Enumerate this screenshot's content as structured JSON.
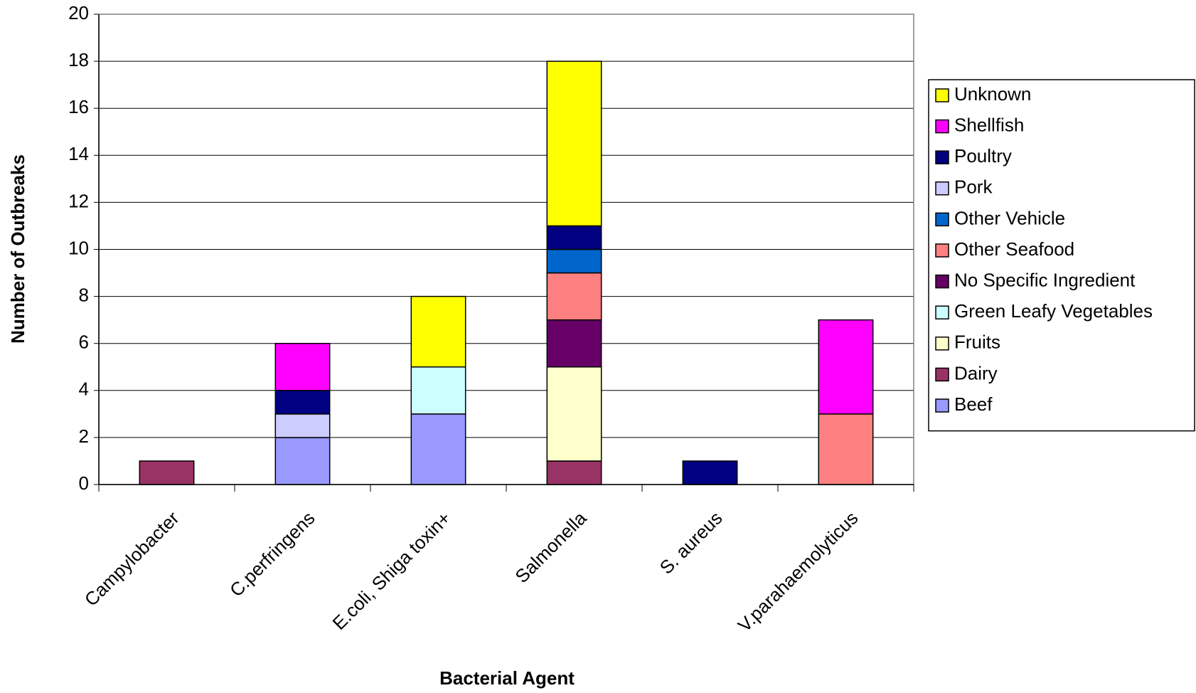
{
  "chart_data": {
    "type": "stacked-bar",
    "x_label": "Bacterial Agent",
    "y_label": "Number of Outbreaks",
    "categories": [
      "Campylobacter",
      "C.perfringens",
      "E.coli, Shiga toxin+",
      "Salmonella",
      "S. aureus",
      "V.parahaemolyticus"
    ],
    "series": [
      {
        "name": "Beef",
        "color": "#9999ff",
        "values": [
          0,
          2,
          3,
          0,
          0,
          0
        ]
      },
      {
        "name": "Dairy",
        "color": "#993366",
        "values": [
          1,
          0,
          0,
          1,
          0,
          0
        ]
      },
      {
        "name": "Fruits",
        "color": "#ffffcc",
        "values": [
          0,
          0,
          0,
          4,
          0,
          0
        ]
      },
      {
        "name": "Green Leafy Vegetables",
        "color": "#ccffff",
        "values": [
          0,
          0,
          2,
          0,
          0,
          0
        ]
      },
      {
        "name": "No Specific Ingredient",
        "color": "#660066",
        "values": [
          0,
          0,
          0,
          2,
          0,
          0
        ]
      },
      {
        "name": "Other Seafood",
        "color": "#ff8080",
        "values": [
          0,
          0,
          0,
          2,
          0,
          3
        ]
      },
      {
        "name": "Other Vehicle",
        "color": "#0066cc",
        "values": [
          0,
          0,
          0,
          1,
          0,
          0
        ]
      },
      {
        "name": "Pork",
        "color": "#ccccff",
        "values": [
          0,
          1,
          0,
          0,
          0,
          0
        ]
      },
      {
        "name": "Poultry",
        "color": "#000080",
        "values": [
          0,
          1,
          0,
          1,
          1,
          0
        ]
      },
      {
        "name": "Shellfish",
        "color": "#ff00ff",
        "values": [
          0,
          2,
          0,
          0,
          0,
          4
        ]
      },
      {
        "name": "Unknown",
        "color": "#ffff00",
        "values": [
          0,
          0,
          3,
          7,
          0,
          0
        ]
      }
    ],
    "ylim": [
      0,
      20
    ],
    "yticks": [
      0,
      2,
      4,
      6,
      8,
      10,
      12,
      14,
      16,
      18,
      20
    ],
    "grid": true,
    "legend": "right"
  }
}
